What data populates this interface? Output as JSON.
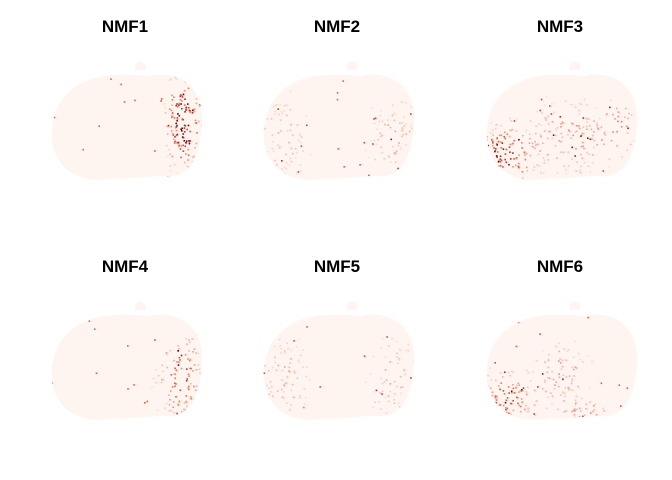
{
  "figure": {
    "panels": [
      {
        "title": "NMF1",
        "hotspot": "right-edge"
      },
      {
        "title": "NMF2",
        "hotspot": "diffuse-sparse"
      },
      {
        "title": "NMF3",
        "hotspot": "left-lower"
      },
      {
        "title": "NMF4",
        "hotspot": "right-mid"
      },
      {
        "title": "NMF5",
        "hotspot": "diffuse-sparse"
      },
      {
        "title": "NMF6",
        "hotspot": "left-lower-and-center"
      }
    ],
    "colormap": {
      "low": "#fff5f0",
      "mid": "#fb6a4a",
      "high": "#67000d"
    },
    "background": "#ffffff"
  }
}
